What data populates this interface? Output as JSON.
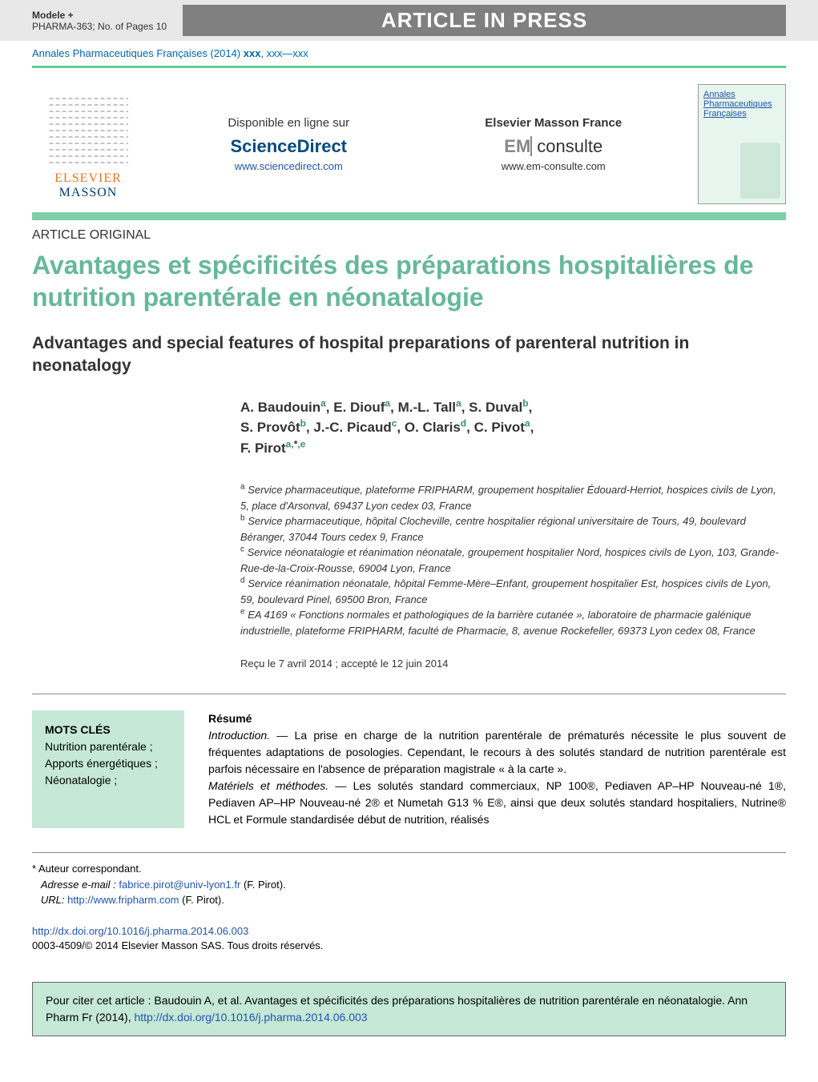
{
  "topbar": {
    "model": "Modele +",
    "ref": "PHARMA-363;   No. of Pages 10",
    "banner": "ARTICLE IN PRESS"
  },
  "citation": {
    "text_prefix": "Annales Pharmaceutiques Françaises (2014) ",
    "text_vol": "xxx",
    "text_range": ", xxx—xxx"
  },
  "header": {
    "elsevier": "ELSEVIER",
    "masson": "MASSON",
    "available": "Disponible en ligne sur",
    "sciencedirect": "ScienceDirect",
    "sd_url": "www.sciencedirect.com",
    "em_brand": "Elsevier Masson France",
    "em_pre": "EM",
    "em_suf": "consulte",
    "em_url": "www.em-consulte.com",
    "thumb_l1": "Annales",
    "thumb_l2": "Pharmaceutiques",
    "thumb_l3": "Françaises"
  },
  "article": {
    "type": "ARTICLE ORIGINAL",
    "title_fr": "Avantages et spécificités des préparations hospitalières de nutrition parentérale en néonatalogie",
    "title_en": "Advantages and special features of hospital preparations of parenteral nutrition in neonatalogy"
  },
  "authors": {
    "list": [
      {
        "n": "A. Baudouin",
        "s": "a"
      },
      {
        "n": "E. Diouf",
        "s": "a"
      },
      {
        "n": "M.-L. Tall",
        "s": "a"
      },
      {
        "n": "S. Duval",
        "s": "b"
      },
      {
        "n": "S. Provôt",
        "s": "b"
      },
      {
        "n": "J.-C. Picaud",
        "s": "c"
      },
      {
        "n": "O. Claris",
        "s": "d"
      },
      {
        "n": "C. Pivot",
        "s": "a"
      },
      {
        "n": "F. Pirot",
        "s": "a,*,e"
      }
    ]
  },
  "affils": {
    "a": "Service pharmaceutique, plateforme FRIPHARM, groupement hospitalier Édouard-Herriot, hospices civils de Lyon, 5, place d'Arsonval, 69437 Lyon cedex 03, France",
    "b": "Service pharmaceutique, hôpital Clocheville, centre hospitalier régional universitaire de Tours, 49, boulevard Béranger, 37044 Tours cedex 9, France",
    "c": "Service néonatalogie et réanimation néonatale, groupement hospitalier Nord, hospices civils de Lyon, 103, Grande-Rue-de-la-Croix-Rousse, 69004 Lyon, France",
    "d": "Service réanimation néonatale, hôpital Femme-Mère–Enfant, groupement hospitalier Est, hospices civils de Lyon, 59, boulevard Pinel, 69500 Bron, France",
    "e": "EA 4169 « Fonctions normales et pathologiques de la barrière cutanée », laboratoire de pharmacie galénique industrielle, plateforme FRIPHARM, faculté de Pharmacie, 8, avenue Rockefeller, 69373 Lyon cedex 08, France"
  },
  "dates": {
    "received": "Reçu le 7 avril 2014 ; accepté le 12 juin 2014"
  },
  "keywords": {
    "head": "MOTS CLÉS",
    "items": "Nutrition parentérale ; Apports énergétiques ; Néonatalogie ;"
  },
  "resume": {
    "head": "Résumé",
    "intro_label": "Introduction. — ",
    "intro": "La prise en charge de la nutrition parentérale de prématurés nécessite le plus souvent de fréquentes adaptations de posologies. Cependant, le recours à des solutés standard de nutrition parentérale est parfois nécessaire en l'absence de préparation magistrale « à la carte ».",
    "mm_label": "Matériels et méthodes. — ",
    "mm": "Les solutés standard commerciaux, NP 100®, Pediaven AP–HP Nouveau-né 1®, Pediaven AP–HP Nouveau-né 2® et Numetah G13 % E®, ainsi que deux solutés standard hospitaliers, Nutrine® HCL et Formule standardisée début de nutrition, réalisés"
  },
  "footnotes": {
    "corr": "* Auteur correspondant.",
    "email_label": "Adresse e-mail : ",
    "email": "fabrice.pirot@univ-lyon1.fr",
    "email_who": " (F. Pirot).",
    "url_label": "URL: ",
    "url": "http://www.fripharm.com",
    "url_who": " (F. Pirot)."
  },
  "doi": {
    "link": "http://dx.doi.org/10.1016/j.pharma.2014.06.003",
    "copyright": "0003-4509/© 2014 Elsevier Masson SAS. Tous droits réservés."
  },
  "citebox": {
    "prefix": "Pour citer cet article : Baudouin A, et al. Avantages et spécificités des préparations hospitalières de nutrition parentérale en néonatalogie. Ann Pharm Fr (2014), ",
    "link": "http://dx.doi.org/10.1016/j.pharma.2014.06.003"
  },
  "colors": {
    "accent_green": "#66b89a",
    "band_green": "#7fcfa6",
    "box_green": "#c5e8d7",
    "link_blue": "#2255aa",
    "elsevier_orange": "#e87722",
    "masson_blue": "#003d73",
    "banner_gray": "#808080"
  }
}
